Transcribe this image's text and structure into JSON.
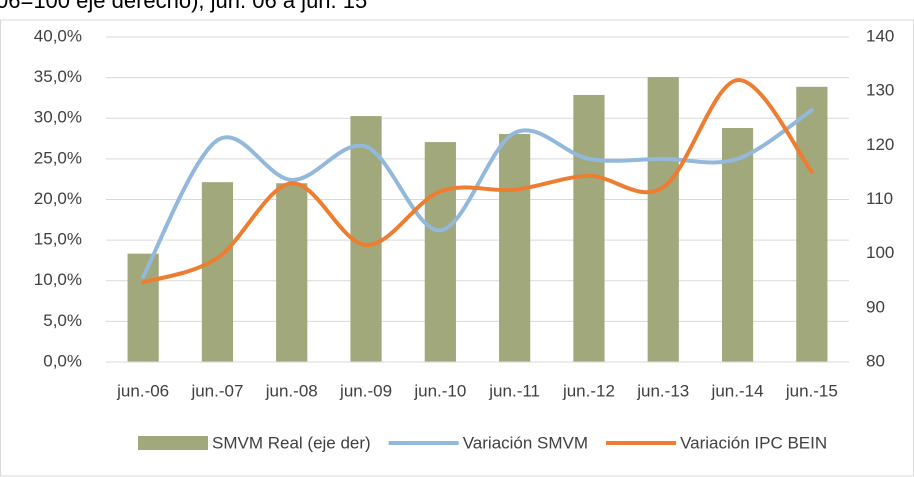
{
  "chart_data": {
    "type": "bar",
    "title": "06=100 eje derecho), jun. 06 a jun. 15",
    "categories": [
      "jun.-06",
      "jun.-07",
      "jun.-08",
      "jun.-09",
      "jun.-10",
      "jun.-11",
      "jun.-12",
      "jun.-13",
      "jun.-14",
      "jun.-15"
    ],
    "series": [
      {
        "name": "SMVM Real (eje der)",
        "type": "bar",
        "axis": "y2",
        "color": "#a1a87c",
        "values": [
          100,
          113.2,
          113,
          125.4,
          120.6,
          122.1,
          129.3,
          132.6,
          123.2,
          130.8
        ]
      },
      {
        "name": "Variación SMVM",
        "type": "line",
        "color": "#92b8dc",
        "values": [
          10.5,
          27.3,
          22.4,
          26.5,
          16.2,
          28.2,
          25,
          25,
          25,
          31
        ]
      },
      {
        "name": "Variación IPC BEIN",
        "type": "line",
        "color": "#ed7d31",
        "values": [
          9.8,
          12.8,
          22,
          14.4,
          21,
          21.2,
          22.9,
          21.5,
          34.7,
          23.4
        ]
      }
    ],
    "ylim": [
      0,
      40
    ],
    "yticks": [
      {
        "value": 0,
        "label": "0,0%"
      },
      {
        "value": 5,
        "label": "5,0%"
      },
      {
        "value": 10,
        "label": "10,0%"
      },
      {
        "value": 15,
        "label": "15,0%"
      },
      {
        "value": 20,
        "label": "20,0%"
      },
      {
        "value": 25,
        "label": "25,0%"
      },
      {
        "value": 30,
        "label": "30,0%"
      },
      {
        "value": 35,
        "label": "35,0%"
      },
      {
        "value": 40,
        "label": "40,0%"
      }
    ],
    "y2lim": [
      80,
      140
    ],
    "y2ticks": [
      80,
      90,
      100,
      110,
      120,
      130,
      140
    ],
    "grid": true,
    "legend": "bottom"
  }
}
